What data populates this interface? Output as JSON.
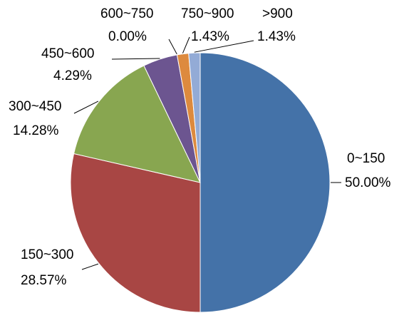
{
  "chart_data": {
    "type": "pie",
    "title": "",
    "slices": [
      {
        "category": "0~150",
        "value": 50.0,
        "label": "50.00%",
        "color": "#4472A8"
      },
      {
        "category": "150~300",
        "value": 28.57,
        "label": "28.57%",
        "color": "#A84644"
      },
      {
        "category": "300~450",
        "value": 14.28,
        "label": "14.28%",
        "color": "#88A650"
      },
      {
        "category": "450~600",
        "value": 4.29,
        "label": "4.29%",
        "color": "#6C5590"
      },
      {
        "category": "600~750",
        "value": 0.0,
        "label": "0.00%",
        "color": "#4BA0B8"
      },
      {
        "category": "750~900",
        "value": 1.43,
        "label": "1.43%",
        "color": "#DD8A3E"
      },
      {
        "category": ">900",
        "value": 1.43,
        "label": "1.43%",
        "color": "#93ABD6"
      }
    ],
    "legend": "none"
  }
}
